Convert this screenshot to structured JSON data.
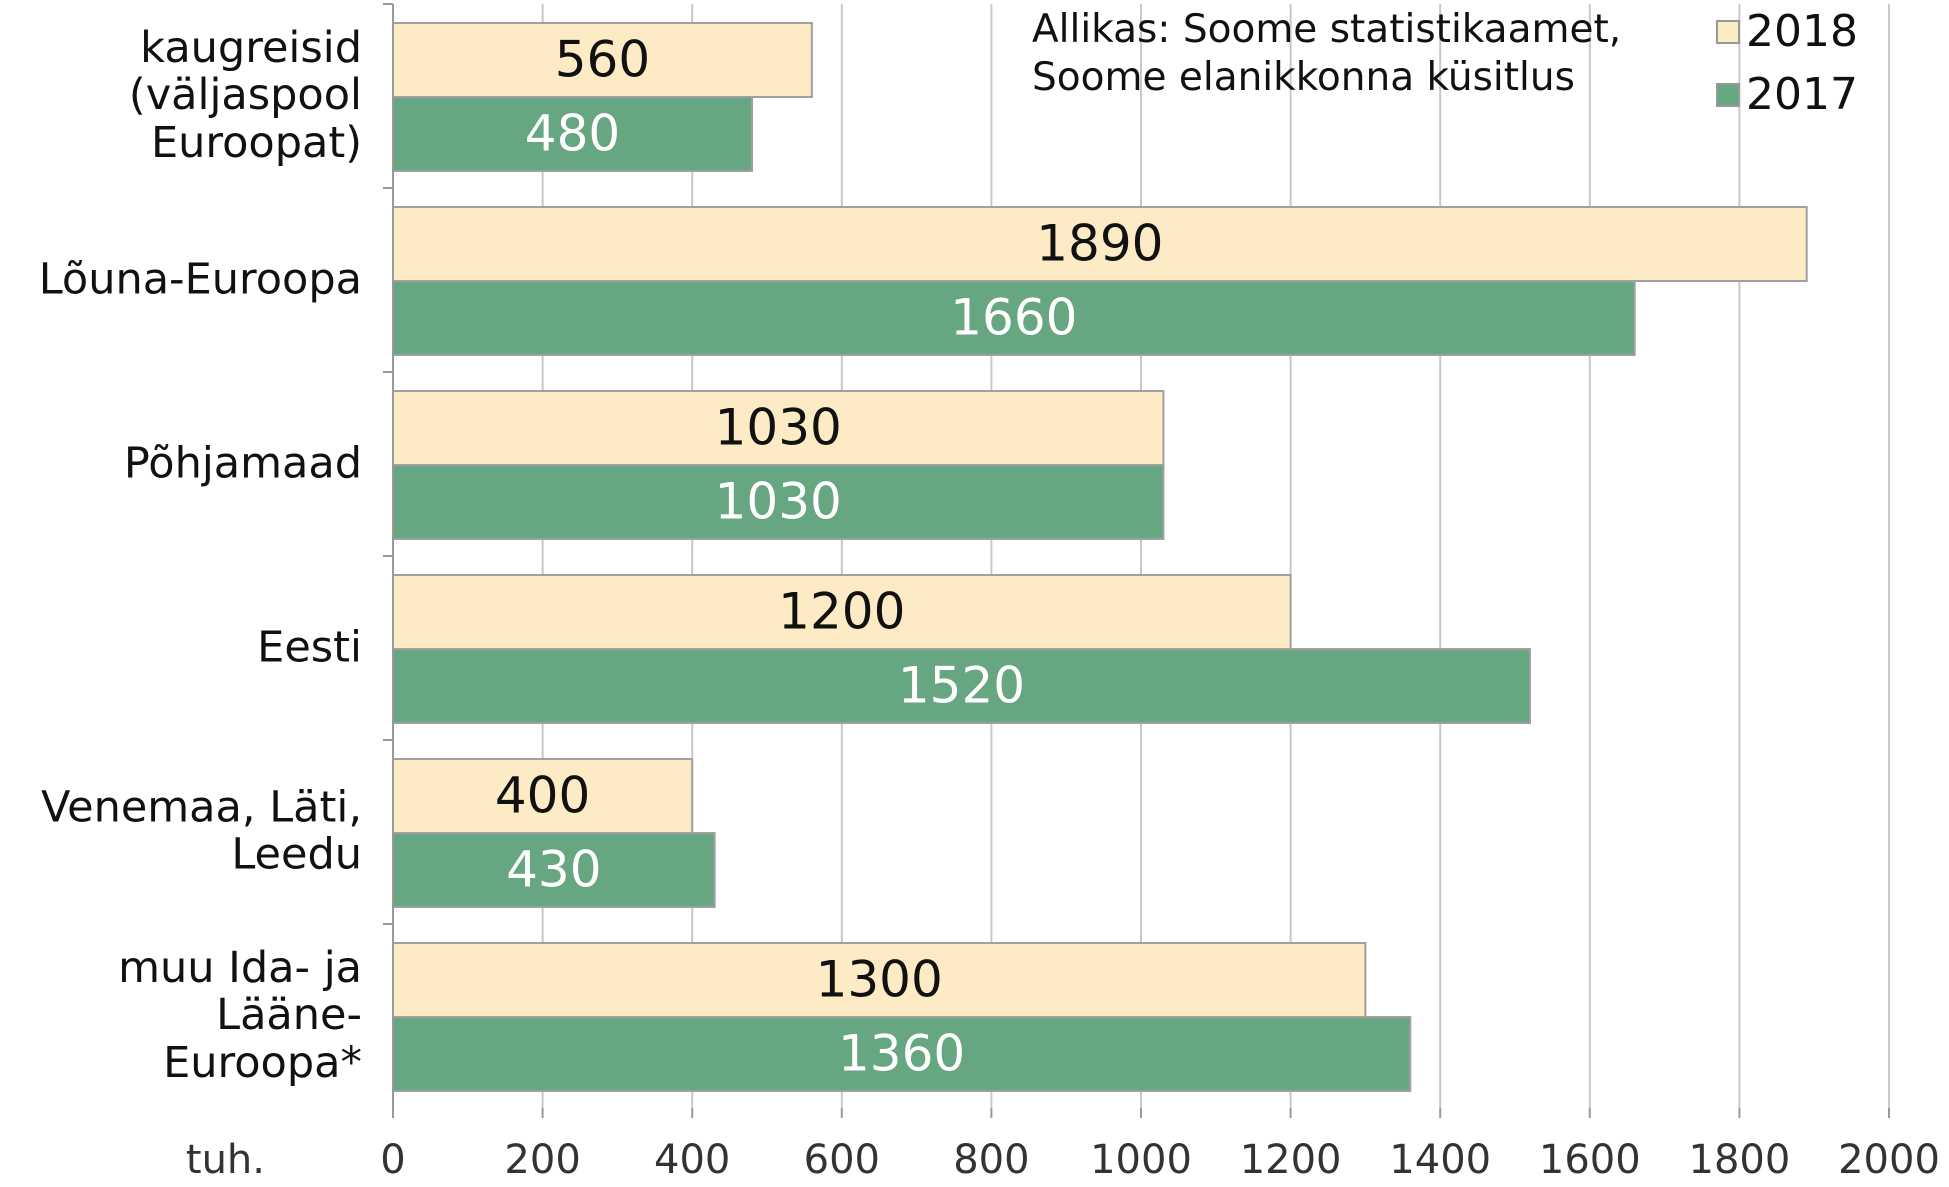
{
  "chart_data": {
    "type": "hbar",
    "categories": [
      "kaugreisid\n(väljaspool\nEuroopat)",
      "Lõuna-Euroopa",
      "Põhjamaad",
      "Eesti",
      "Venemaa, Läti,\nLeedu",
      "muu Ida- ja\nLääne-\nEuroopa*"
    ],
    "series": [
      {
        "name": "2018",
        "color": "#fcebc4",
        "values": [
          560,
          1890,
          1030,
          1200,
          400,
          1300
        ]
      },
      {
        "name": "2017",
        "color": "#66a680",
        "values": [
          480,
          1660,
          1030,
          1520,
          430,
          1360
        ]
      }
    ],
    "xlim": [
      0,
      2000
    ],
    "xticks": [
      0,
      200,
      400,
      600,
      800,
      1000,
      1200,
      1400,
      1600,
      1800,
      2000
    ],
    "xlabel": "tuh.",
    "annotation": "Allikas: Soome statistikaamet,\nSoome elanikkonna küsitlus",
    "grid": true,
    "legend": "top-right"
  }
}
